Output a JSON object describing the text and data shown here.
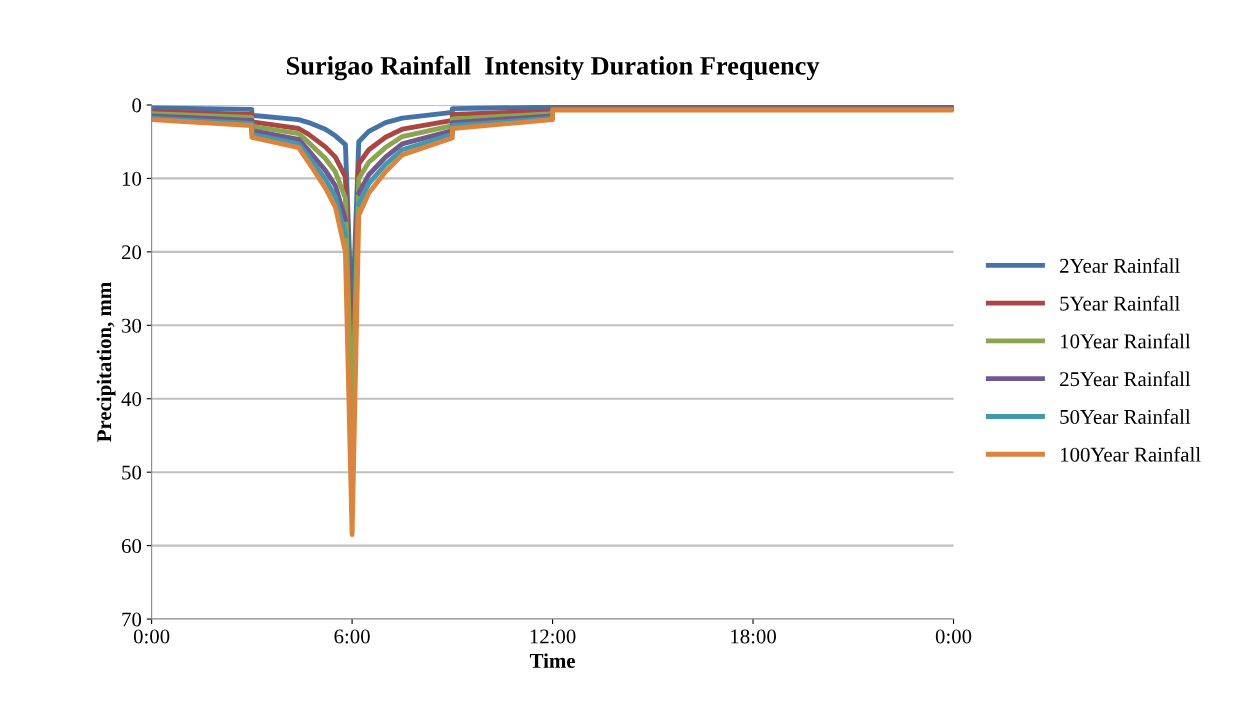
{
  "chart_data": {
    "type": "line",
    "title": "Surigao Rainfall  Intensity Duration Frequency",
    "xlabel": "Time",
    "ylabel": "Precipitation, mm",
    "x": [
      0,
      3,
      3,
      4.4,
      4.7,
      5.2,
      5.5,
      5.8,
      6,
      6.2,
      6.5,
      7,
      7.5,
      9,
      9,
      12,
      12,
      24
    ],
    "series": [
      {
        "name": "2Year Rainfall",
        "color": "#4572a7",
        "values": [
          0.4,
          0.6,
          1.4,
          2.0,
          2.4,
          3.3,
          4.2,
          5.4,
          30,
          5.0,
          3.6,
          2.4,
          1.8,
          1.0,
          0.5,
          0.3,
          0.2,
          0.2
        ]
      },
      {
        "name": "5Year Rainfall",
        "color": "#aa4643",
        "values": [
          0.9,
          1.3,
          2.3,
          3.2,
          4.0,
          5.7,
          7.1,
          9.8,
          38,
          8.0,
          6.1,
          4.4,
          3.3,
          2.1,
          1.3,
          0.8,
          0.4,
          0.4
        ]
      },
      {
        "name": "10Year Rainfall",
        "color": "#89a54e",
        "values": [
          1.2,
          1.7,
          2.9,
          3.9,
          5.1,
          7.3,
          9.1,
          12.7,
          43,
          10,
          7.8,
          5.8,
          4.3,
          2.8,
          1.9,
          1.2,
          0.5,
          0.5
        ]
      },
      {
        "name": "25Year Rainfall",
        "color": "#71588f",
        "values": [
          1.5,
          2.1,
          3.5,
          4.7,
          6.2,
          8.9,
          11.0,
          15.6,
          null,
          12,
          9.5,
          7.1,
          5.3,
          3.5,
          2.4,
          1.5,
          0.5,
          0.5
        ]
      },
      {
        "name": "50Year Rainfall",
        "color": "#4198af",
        "values": [
          1.8,
          2.5,
          4.0,
          5.3,
          7.0,
          10.1,
          12.5,
          17.8,
          null,
          13.5,
          10.7,
          8.1,
          6.1,
          4.0,
          2.8,
          1.8,
          0.6,
          0.6
        ]
      },
      {
        "name": "100Year Rainfall",
        "color": "#db843d",
        "values": [
          2.0,
          2.8,
          4.4,
          5.8,
          7.8,
          11.3,
          13.9,
          20,
          58.5,
          15,
          12,
          9.1,
          6.8,
          4.5,
          3.2,
          2.0,
          0.7,
          0.7
        ]
      }
    ],
    "xlim": [
      0,
      24
    ],
    "xticks": [
      {
        "value": 0,
        "label": "0:00"
      },
      {
        "value": 6,
        "label": "6:00"
      },
      {
        "value": 12,
        "label": "12:00"
      },
      {
        "value": 18,
        "label": "18:00"
      },
      {
        "value": 24,
        "label": "0:00"
      }
    ],
    "ylim": [
      70,
      0
    ],
    "yticks": [
      0,
      10,
      20,
      30,
      40,
      50,
      60,
      70
    ],
    "grid": "y",
    "legend": "right",
    "marker": "none",
    "line_style": "solid"
  }
}
